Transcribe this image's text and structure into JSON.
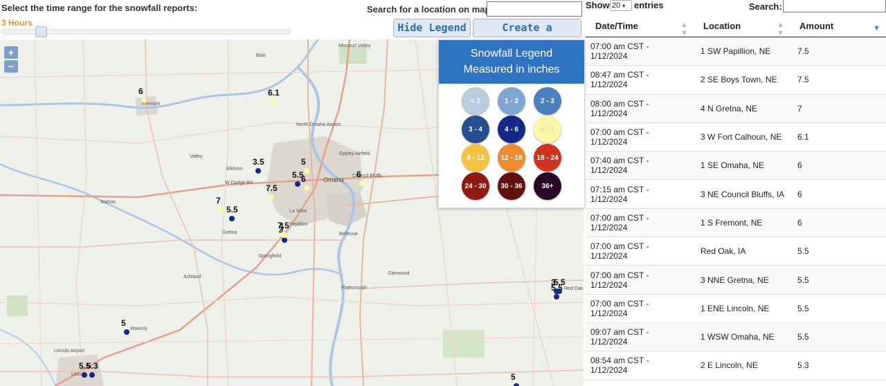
{
  "controls": {
    "range_label": "Select the time range for the snowfall reports:",
    "range_value": "3 Hours",
    "search_map_label": "Search for a location on map:",
    "search_map_value": "",
    "hide_legend": "Hide Legend",
    "permalink": "Create a permalink"
  },
  "map": {
    "zoom_in": "+",
    "zoom_out": "−",
    "places": [
      "Blair",
      "Missouri Valley",
      "Fremont",
      "North Omaha Airport",
      "Eppley Airfield",
      "Valley",
      "Elkhorn",
      "W Dodge Rd",
      "Omaha",
      "Council Bluffs",
      "Wahoo",
      "La Vista",
      "Papillion",
      "Gretna",
      "Bellevue",
      "Springfield",
      "Ashland",
      "Glenwood",
      "Plattsmouth",
      "Red Oak",
      "Waverly",
      "Lincoln Airport",
      "Lincoln"
    ],
    "reports": [
      "6.1",
      "6",
      "3.5",
      "5.5",
      "5",
      "6",
      "6",
      "7.5",
      "7",
      "5.5",
      "4",
      "7.5",
      "4",
      "5.5",
      "5.5",
      "3",
      "5",
      "5.5",
      "5.3",
      "5"
    ]
  },
  "legend": {
    "title": "Snowfall Legend",
    "subtitle": "Measured in inches",
    "items": [
      {
        "label": "< 1",
        "color": "#b8cde0",
        "text": "#fff"
      },
      {
        "label": "1 - 2",
        "color": "#7fa6d0",
        "text": "#fff"
      },
      {
        "label": "2 - 3",
        "color": "#4a81bd",
        "text": "#fff"
      },
      {
        "label": "3 - 4",
        "color": "#264f92",
        "text": "#fff"
      },
      {
        "label": "4 - 6",
        "color": "#14298a",
        "text": "#fff"
      },
      {
        "label": "6 - 8",
        "color": "#fbf6a8",
        "text": "#e8e0a0"
      },
      {
        "label": "8 - 12",
        "color": "#f6c240",
        "text": "#fff"
      },
      {
        "label": "12 - 18",
        "color": "#ef8a2d",
        "text": "#fff"
      },
      {
        "label": "18 - 24",
        "color": "#cf3420",
        "text": "#fff"
      },
      {
        "label": "24 - 30",
        "color": "#8e1a12",
        "text": "#fff"
      },
      {
        "label": "30 - 36",
        "color": "#62100b",
        "text": "#fff"
      },
      {
        "label": "36+",
        "color": "#2a0828",
        "text": "#fff"
      }
    ]
  },
  "table": {
    "show_label": "Show",
    "show_value": "20",
    "entries_label": "entries",
    "search_label": "Search:",
    "search_value": "",
    "columns": [
      "Date/Time",
      "Location",
      "Amount"
    ],
    "rows": [
      {
        "time": "07:00 am CST -",
        "date": "1/12/2024",
        "location": "1 SW Papillion, NE",
        "amount": "7.5"
      },
      {
        "time": "08:47 am CST -",
        "date": "1/12/2024",
        "location": "2 SE Boys Town, NE",
        "amount": "7.5"
      },
      {
        "time": "08:00 am CST -",
        "date": "1/12/2024",
        "location": "4 N Gretna, NE",
        "amount": "7"
      },
      {
        "time": "07:00 am CST -",
        "date": "1/12/2024",
        "location": "3 W Fort Calhoun, NE",
        "amount": "6.1"
      },
      {
        "time": "07:40 am CST -",
        "date": "1/12/2024",
        "location": "1 SE Omaha, NE",
        "amount": "6"
      },
      {
        "time": "07:15 am CST -",
        "date": "1/12/2024",
        "location": "3 NE Council Bluffs, IA",
        "amount": "6"
      },
      {
        "time": "07:00 am CST -",
        "date": "1/12/2024",
        "location": "1 S Fremont, NE",
        "amount": "6"
      },
      {
        "time": "07:00 am CST -",
        "date": "1/12/2024",
        "location": "Red Oak, IA",
        "amount": "5.5"
      },
      {
        "time": "07:00 am CST -",
        "date": "1/12/2024",
        "location": "3 NNE Gretna, NE",
        "amount": "5.5"
      },
      {
        "time": "07:00 am CST -",
        "date": "1/12/2024",
        "location": "1 ENE Lincoln, NE",
        "amount": "5.5"
      },
      {
        "time": "09:07 am CST -",
        "date": "1/12/2024",
        "location": "1 WSW Omaha, NE",
        "amount": "5.5"
      },
      {
        "time": "08:54 am CST -",
        "date": "1/12/2024",
        "location": "2 E Lincoln, NE",
        "amount": "5.3"
      }
    ]
  }
}
